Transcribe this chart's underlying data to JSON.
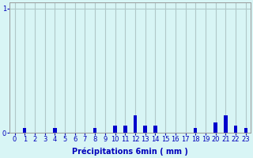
{
  "xlabel": "Précipitations 6min ( mm )",
  "ylabel": "",
  "background_color": "#d8f5f5",
  "bar_color": "#0000cc",
  "grid_color": "#b0c8c8",
  "ylim": [
    0,
    1.05
  ],
  "xlim": [
    -0.5,
    23.5
  ],
  "hours": [
    0,
    1,
    2,
    3,
    4,
    5,
    6,
    7,
    8,
    9,
    10,
    11,
    12,
    13,
    14,
    15,
    16,
    17,
    18,
    19,
    20,
    21,
    22,
    23
  ],
  "values": [
    0.0,
    0.04,
    0.0,
    0.0,
    0.04,
    0.0,
    0.0,
    0.0,
    0.04,
    0.0,
    0.06,
    0.06,
    0.14,
    0.06,
    0.06,
    0.0,
    0.0,
    0.0,
    0.04,
    0.0,
    0.08,
    0.14,
    0.06,
    0.04
  ],
  "yticks": [
    0,
    1
  ],
  "xticks": [
    0,
    1,
    2,
    3,
    4,
    5,
    6,
    7,
    8,
    9,
    10,
    11,
    12,
    13,
    14,
    15,
    16,
    17,
    18,
    19,
    20,
    21,
    22,
    23
  ],
  "tick_fontsize": 6,
  "xlabel_fontsize": 7,
  "bar_width": 0.35
}
